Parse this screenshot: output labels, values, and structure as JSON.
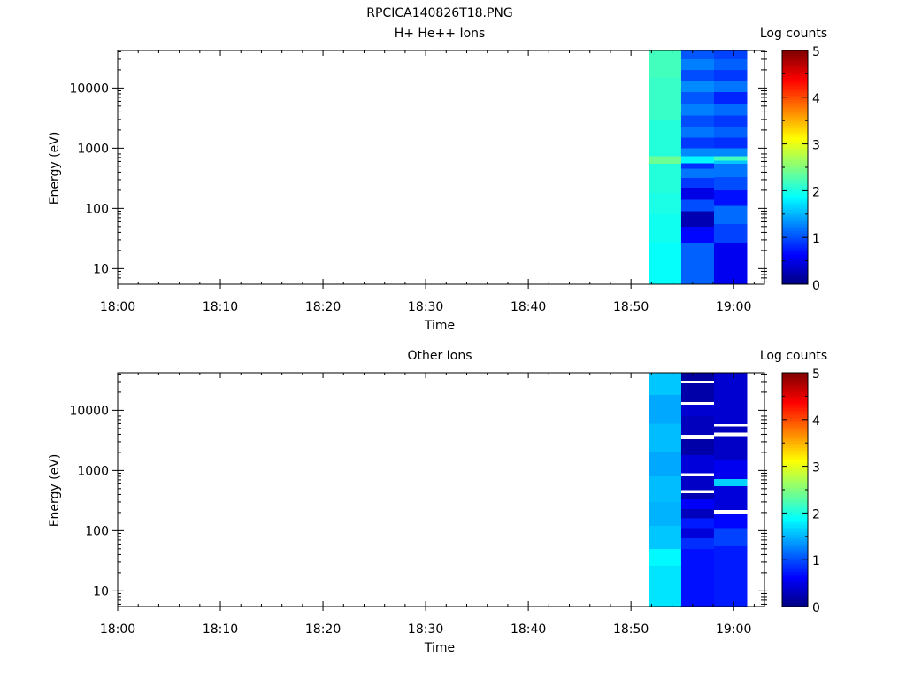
{
  "title": "RPCICA140826T18.PNG",
  "chart_data": [
    {
      "type": "heatmap",
      "title": "H+ He++ Ions",
      "xlabel": "Time",
      "ylabel": "Energy (eV)",
      "x_ticks": [
        "18:00",
        "18:10",
        "18:20",
        "18:30",
        "18:40",
        "18:50",
        "19:00"
      ],
      "xlim": [
        "18:00",
        "19:03"
      ],
      "y_ticks": [
        "10",
        "100",
        "1000",
        "10000"
      ],
      "y_scale": "log",
      "ylim": [
        5.5,
        42000
      ],
      "colorbar": {
        "label": "Log counts",
        "ticks": [
          "0",
          "1",
          "2",
          "3",
          "4",
          "5"
        ],
        "range": [
          0,
          5
        ],
        "colormap": "jet"
      },
      "columns": [
        {
          "t_start": "18:51.7",
          "t_end": "18:54.9",
          "bins": [
            {
              "e_lo": 5.5,
              "e_hi": 26,
              "v": 1.9
            },
            {
              "e_lo": 26,
              "e_hi": 80,
              "v": 1.95
            },
            {
              "e_lo": 80,
              "e_hi": 180,
              "v": 2.0
            },
            {
              "e_lo": 180,
              "e_hi": 550,
              "v": 2.05
            },
            {
              "e_lo": 550,
              "e_hi": 740,
              "v": 2.4
            },
            {
              "e_lo": 740,
              "e_hi": 3000,
              "v": 2.05
            },
            {
              "e_lo": 3000,
              "e_hi": 15000,
              "v": 2.15
            },
            {
              "e_lo": 15000,
              "e_hi": 42000,
              "v": 2.2
            }
          ]
        },
        {
          "t_start": "18:54.9",
          "t_end": "18:58.1",
          "bins": [
            {
              "e_lo": 5.5,
              "e_hi": 26,
              "v": 1.1
            },
            {
              "e_lo": 26,
              "e_hi": 50,
              "v": 0.65
            },
            {
              "e_lo": 50,
              "e_hi": 90,
              "v": 0.25
            },
            {
              "e_lo": 90,
              "e_hi": 140,
              "v": 1.0
            },
            {
              "e_lo": 140,
              "e_hi": 220,
              "v": 0.5
            },
            {
              "e_lo": 220,
              "e_hi": 320,
              "v": 0.9
            },
            {
              "e_lo": 320,
              "e_hi": 460,
              "v": 1.2
            },
            {
              "e_lo": 460,
              "e_hi": 560,
              "v": 0.85
            },
            {
              "e_lo": 560,
              "e_hi": 740,
              "v": 1.85
            },
            {
              "e_lo": 740,
              "e_hi": 1000,
              "v": 1.3
            },
            {
              "e_lo": 1000,
              "e_hi": 1500,
              "v": 0.9
            },
            {
              "e_lo": 1500,
              "e_hi": 2300,
              "v": 1.2
            },
            {
              "e_lo": 2300,
              "e_hi": 3500,
              "v": 1.0
            },
            {
              "e_lo": 3500,
              "e_hi": 5500,
              "v": 1.25
            },
            {
              "e_lo": 5500,
              "e_hi": 8500,
              "v": 1.05
            },
            {
              "e_lo": 8500,
              "e_hi": 13000,
              "v": 1.3
            },
            {
              "e_lo": 13000,
              "e_hi": 20000,
              "v": 1.0
            },
            {
              "e_lo": 20000,
              "e_hi": 30000,
              "v": 1.25
            },
            {
              "e_lo": 30000,
              "e_hi": 42000,
              "v": 1.05
            }
          ]
        },
        {
          "t_start": "18:58.1",
          "t_end": "19:01.3",
          "bins": [
            {
              "e_lo": 5.5,
              "e_hi": 26,
              "v": 0.55
            },
            {
              "e_lo": 26,
              "e_hi": 55,
              "v": 0.95
            },
            {
              "e_lo": 55,
              "e_hi": 110,
              "v": 1.15
            },
            {
              "e_lo": 110,
              "e_hi": 200,
              "v": 0.7
            },
            {
              "e_lo": 200,
              "e_hi": 330,
              "v": 1.0
            },
            {
              "e_lo": 330,
              "e_hi": 550,
              "v": 1.2
            },
            {
              "e_lo": 550,
              "e_hi": 620,
              "v": 1.6
            },
            {
              "e_lo": 620,
              "e_hi": 740,
              "v": 2.2
            },
            {
              "e_lo": 740,
              "e_hi": 1000,
              "v": 1.3
            },
            {
              "e_lo": 1000,
              "e_hi": 1500,
              "v": 0.85
            },
            {
              "e_lo": 1500,
              "e_hi": 2300,
              "v": 1.1
            },
            {
              "e_lo": 2300,
              "e_hi": 3500,
              "v": 0.9
            },
            {
              "e_lo": 3500,
              "e_hi": 5500,
              "v": 1.15
            },
            {
              "e_lo": 5500,
              "e_hi": 8500,
              "v": 0.8
            },
            {
              "e_lo": 8500,
              "e_hi": 13000,
              "v": 1.2
            },
            {
              "e_lo": 13000,
              "e_hi": 20000,
              "v": 0.9
            },
            {
              "e_lo": 20000,
              "e_hi": 30000,
              "v": 1.1
            },
            {
              "e_lo": 30000,
              "e_hi": 42000,
              "v": 0.95
            }
          ]
        }
      ]
    },
    {
      "type": "heatmap",
      "title": "Other Ions",
      "xlabel": "Time",
      "ylabel": "Energy (eV)",
      "x_ticks": [
        "18:00",
        "18:10",
        "18:20",
        "18:30",
        "18:40",
        "18:50",
        "19:00"
      ],
      "xlim": [
        "18:00",
        "19:03"
      ],
      "y_ticks": [
        "10",
        "100",
        "1000",
        "10000"
      ],
      "y_scale": "log",
      "ylim": [
        5.5,
        42000
      ],
      "colorbar": {
        "label": "Log counts",
        "ticks": [
          "0",
          "1",
          "2",
          "3",
          "4",
          "5"
        ],
        "range": [
          0,
          5
        ],
        "colormap": "jet"
      },
      "columns": [
        {
          "t_start": "18:51.7",
          "t_end": "18:54.9",
          "bins": [
            {
              "e_lo": 5.5,
              "e_hi": 26,
              "v": 1.75
            },
            {
              "e_lo": 26,
              "e_hi": 50,
              "v": 1.85
            },
            {
              "e_lo": 50,
              "e_hi": 120,
              "v": 1.6
            },
            {
              "e_lo": 120,
              "e_hi": 300,
              "v": 1.5
            },
            {
              "e_lo": 300,
              "e_hi": 800,
              "v": 1.55
            },
            {
              "e_lo": 800,
              "e_hi": 2000,
              "v": 1.45
            },
            {
              "e_lo": 2000,
              "e_hi": 6000,
              "v": 1.55
            },
            {
              "e_lo": 6000,
              "e_hi": 18000,
              "v": 1.45
            },
            {
              "e_lo": 18000,
              "e_hi": 42000,
              "v": 1.6
            }
          ]
        },
        {
          "t_start": "18:54.9",
          "t_end": "18:58.1",
          "bins": [
            {
              "e_lo": 5.5,
              "e_hi": 50,
              "v": 0.7
            },
            {
              "e_lo": 50,
              "e_hi": 75,
              "v": 0.85
            },
            {
              "e_lo": 75,
              "e_hi": 110,
              "v": 0.45
            },
            {
              "e_lo": 110,
              "e_hi": 160,
              "v": 0.75
            },
            {
              "e_lo": 160,
              "e_hi": 230,
              "v": 0.3
            },
            {
              "e_lo": 230,
              "e_hi": 330,
              "v": 0.6
            },
            {
              "e_lo": 330,
              "e_hi": 420,
              "v": 0.25
            },
            {
              "e_lo": 420,
              "e_hi": 470,
              "v": null
            },
            {
              "e_lo": 470,
              "e_hi": 800,
              "v": 0.35
            },
            {
              "e_lo": 800,
              "e_hi": 900,
              "v": null
            },
            {
              "e_lo": 900,
              "e_hi": 1800,
              "v": 0.45
            },
            {
              "e_lo": 1800,
              "e_hi": 3300,
              "v": 0.2
            },
            {
              "e_lo": 3300,
              "e_hi": 3900,
              "v": null
            },
            {
              "e_lo": 3900,
              "e_hi": 8000,
              "v": 0.3
            },
            {
              "e_lo": 8000,
              "e_hi": 12500,
              "v": 0.4
            },
            {
              "e_lo": 12500,
              "e_hi": 13700,
              "v": null
            },
            {
              "e_lo": 13700,
              "e_hi": 28000,
              "v": 0.2
            },
            {
              "e_lo": 28000,
              "e_hi": 31000,
              "v": null
            },
            {
              "e_lo": 31000,
              "e_hi": 42000,
              "v": 0.15
            }
          ]
        },
        {
          "t_start": "18:58.1",
          "t_end": "19:01.3",
          "bins": [
            {
              "e_lo": 5.5,
              "e_hi": 55,
              "v": 0.75
            },
            {
              "e_lo": 55,
              "e_hi": 110,
              "v": 0.95
            },
            {
              "e_lo": 110,
              "e_hi": 190,
              "v": 0.65
            },
            {
              "e_lo": 190,
              "e_hi": 220,
              "v": null
            },
            {
              "e_lo": 220,
              "e_hi": 550,
              "v": 0.45
            },
            {
              "e_lo": 550,
              "e_hi": 720,
              "v": 1.65
            },
            {
              "e_lo": 720,
              "e_hi": 1500,
              "v": 0.55
            },
            {
              "e_lo": 1500,
              "e_hi": 3700,
              "v": 0.35
            },
            {
              "e_lo": 3700,
              "e_hi": 4300,
              "v": null
            },
            {
              "e_lo": 4300,
              "e_hi": 5400,
              "v": 0.3
            },
            {
              "e_lo": 5400,
              "e_hi": 5900,
              "v": null
            },
            {
              "e_lo": 5900,
              "e_hi": 42000,
              "v": 0.4
            }
          ]
        }
      ]
    }
  ]
}
